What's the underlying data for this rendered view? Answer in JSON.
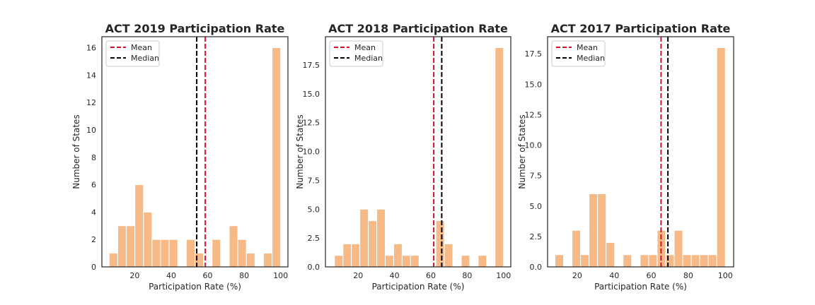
{
  "colors": {
    "bar": "#f7b986",
    "mean": "#d0112b",
    "median": "#000000",
    "frame": "#262626"
  },
  "chart_data": [
    {
      "type": "bar",
      "title": "ACT 2019 Participation Rate",
      "xlabel": "Participation Rate (%)",
      "ylabel": "Number of States",
      "xlim": [
        2,
        104
      ],
      "ylim": [
        0,
        16.8
      ],
      "xticks": [
        20,
        40,
        60,
        80,
        100
      ],
      "yticks": [
        0,
        2,
        4,
        6,
        8,
        10,
        12,
        14,
        16
      ],
      "ytick_labels": [
        "0",
        "2",
        "4",
        "6",
        "8",
        "10",
        "12",
        "14",
        "16"
      ],
      "bins": {
        "start": 6,
        "width": 4.7
      },
      "values": [
        1,
        3,
        3,
        6,
        4,
        2,
        2,
        2,
        0,
        2,
        1,
        0,
        2,
        0,
        3,
        2,
        1,
        0,
        1,
        16
      ],
      "mean": 58.7,
      "median": 54,
      "legend": [
        "Mean",
        "Median"
      ],
      "legend_loc": "upper left",
      "grid": false
    },
    {
      "type": "bar",
      "title": "ACT 2018 Participation Rate",
      "xlabel": "Participation Rate (%)",
      "ylabel": "Number of States",
      "xlim": [
        2,
        104
      ],
      "ylim": [
        0,
        19.95
      ],
      "xticks": [
        20,
        40,
        60,
        80,
        100
      ],
      "yticks": [
        0,
        2.5,
        5,
        7.5,
        10,
        12.5,
        15,
        17.5
      ],
      "ytick_labels": [
        "0.0",
        "2.5",
        "5.0",
        "7.5",
        "10.0",
        "12.5",
        "15.0",
        "17.5"
      ],
      "bins": {
        "start": 7,
        "width": 4.65
      },
      "values": [
        1,
        2,
        2,
        5,
        4,
        5,
        1,
        2,
        1,
        1,
        0,
        0,
        4,
        2,
        0,
        1,
        0,
        1,
        0,
        19
      ],
      "mean": 61.6,
      "median": 66,
      "legend": [
        "Mean",
        "Median"
      ],
      "legend_loc": "upper left",
      "grid": false
    },
    {
      "type": "bar",
      "title": "ACT 2017 Participation Rate",
      "xlabel": "Participation Rate (%)",
      "ylabel": "Number of States",
      "xlim": [
        4,
        104.5
      ],
      "ylim": [
        0,
        18.9
      ],
      "xticks": [
        20,
        40,
        60,
        80,
        100
      ],
      "yticks": [
        0,
        2.5,
        5,
        7.5,
        10,
        12.5,
        15,
        17.5
      ],
      "ytick_labels": [
        "0.0",
        "2.5",
        "5.0",
        "7.5",
        "10.0",
        "12.5",
        "15.0",
        "17.5"
      ],
      "bins": {
        "start": 8,
        "width": 4.6
      },
      "values": [
        1,
        0,
        3,
        1,
        6,
        6,
        2,
        0,
        1,
        0,
        1,
        1,
        3,
        1,
        3,
        1,
        1,
        1,
        1,
        18
      ],
      "mean": 65.3,
      "median": 69,
      "legend": [
        "Mean",
        "Median"
      ],
      "legend_loc": "upper left",
      "grid": false
    }
  ]
}
